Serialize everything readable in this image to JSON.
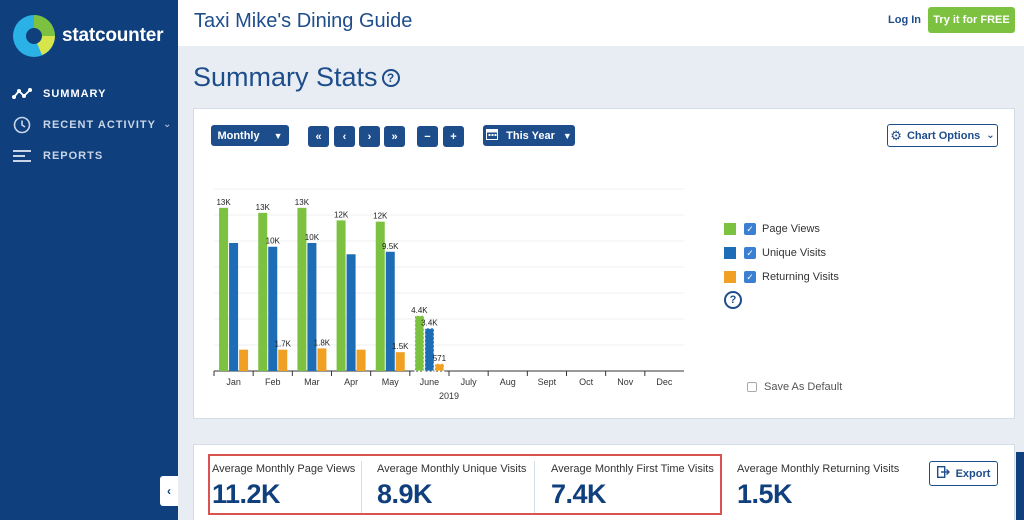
{
  "brand": {
    "name": "statcounter"
  },
  "sidebar": {
    "items": [
      {
        "label": "SUMMARY",
        "icon": "summary-graph-icon",
        "active": true
      },
      {
        "label": "RECENT ACTIVITY",
        "icon": "clock-icon",
        "active": false
      },
      {
        "label": "REPORTS",
        "icon": "reports-list-icon",
        "active": false
      }
    ]
  },
  "header": {
    "site_title": "Taxi Mike's Dining Guide",
    "login_label": "Log In",
    "try_label": "Try it for FREE"
  },
  "page": {
    "title": "Summary Stats"
  },
  "toolbar": {
    "period_select": "Monthly",
    "range_select": "This Year",
    "chart_options_label": "Chart Options"
  },
  "legend": {
    "items": [
      {
        "label": "Page Views",
        "color": "#7cc240",
        "checked": true
      },
      {
        "label": "Unique Visits",
        "color": "#1c6db5",
        "checked": true
      },
      {
        "label": "Returning Visits",
        "color": "#f0a022",
        "checked": true
      }
    ],
    "save_default_label": "Save As Default"
  },
  "chart_data": {
    "type": "bar",
    "categories": [
      "Jan",
      "Feb",
      "Mar",
      "Apr",
      "May",
      "June",
      "July",
      "Aug",
      "Sept",
      "Oct",
      "Nov",
      "Dec"
    ],
    "xlabel": "2019",
    "ylim": [
      0,
      14500
    ],
    "grid": true,
    "series": [
      {
        "name": "Page Views",
        "color": "#7cc240",
        "values": [
          13000,
          12600,
          13000,
          12000,
          11900,
          4400,
          null,
          null,
          null,
          null,
          null,
          null
        ],
        "labels": [
          "13K",
          "13K",
          "13K",
          "12K",
          "12K",
          "4.4K",
          "",
          "",
          "",
          "",
          "",
          ""
        ]
      },
      {
        "name": "Unique Visits",
        "color": "#1c6db5",
        "values": [
          10200,
          9900,
          10200,
          9300,
          9500,
          3400,
          null,
          null,
          null,
          null,
          null,
          null
        ],
        "labels": [
          "",
          "10K",
          "10K",
          "",
          "9.5K",
          "3.4K",
          "",
          "",
          "",
          "",
          "",
          ""
        ]
      },
      {
        "name": "Returning Visits",
        "color": "#f0a022",
        "values": [
          1700,
          1700,
          1800,
          1700,
          1500,
          571,
          null,
          null,
          null,
          null,
          null,
          null
        ],
        "labels": [
          "",
          "1.7K",
          "1.8K",
          "",
          "1.5K",
          "571",
          "",
          "",
          "",
          "",
          "",
          ""
        ]
      }
    ]
  },
  "stats": [
    {
      "label": "Average Monthly Page Views",
      "value": "11.2K"
    },
    {
      "label": "Average Monthly Unique Visits",
      "value": "8.9K"
    },
    {
      "label": "Average Monthly First Time Visits",
      "value": "7.4K"
    },
    {
      "label": "Average Monthly Returning Visits",
      "value": "1.5K"
    }
  ],
  "export_label": "Export"
}
